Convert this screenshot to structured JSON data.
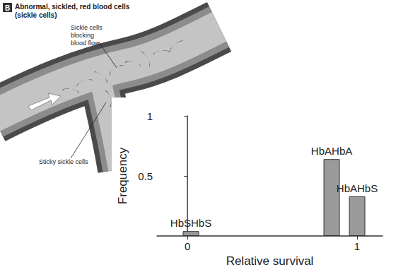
{
  "illustration": {
    "badge": "B",
    "title": "Abnormal, sickled, red blood cells",
    "subtitle": "(sickle cells)",
    "labels": [
      "Sickle cells blocking blood flow",
      "Sticky sickle cells"
    ]
  },
  "chart_data": {
    "type": "bar",
    "x_label": "Relative survival",
    "y_label": "Frequency",
    "categories": [
      "HbSHbS",
      "HbAHbA",
      "HbAHbS"
    ],
    "x": [
      0.02,
      0.85,
      1.0
    ],
    "values": [
      0.04,
      0.64,
      0.33
    ],
    "color": "#9a9a9a",
    "xlim": [
      -0.18,
      1.15
    ],
    "xticks": [
      0,
      1
    ],
    "ylim": [
      0,
      1
    ],
    "yticks": [
      0.5,
      1
    ],
    "grid": false
  }
}
